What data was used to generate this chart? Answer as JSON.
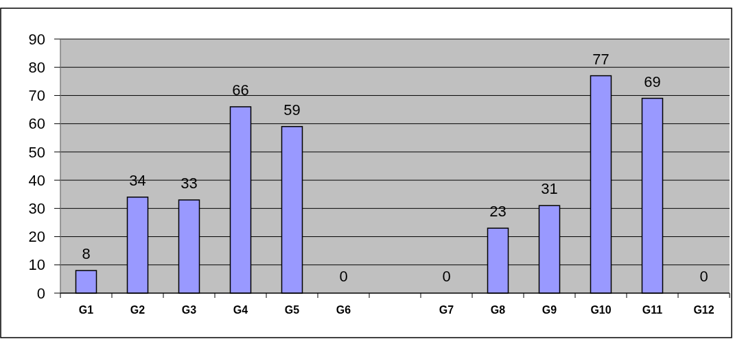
{
  "chart_data": {
    "type": "bar",
    "categories": [
      "G1",
      "G2",
      "G3",
      "G4",
      "G5",
      "G6",
      null,
      "G7",
      "G8",
      "G9",
      "G10",
      "G11",
      "G12"
    ],
    "values": [
      8,
      34,
      33,
      66,
      59,
      0,
      null,
      0,
      23,
      31,
      77,
      69,
      0
    ],
    "color": "#9999ff",
    "ylim": [
      0,
      90
    ],
    "yticks": [
      0,
      10,
      20,
      30,
      40,
      50,
      60,
      70,
      80,
      90
    ],
    "grid": "y",
    "data_labels": true
  }
}
